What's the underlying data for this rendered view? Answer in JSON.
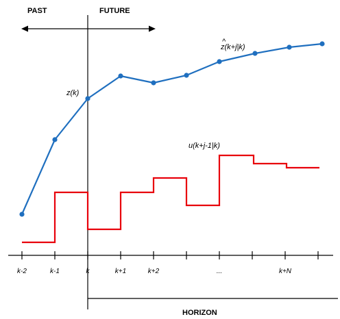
{
  "labels": {
    "past": "PAST",
    "future": "FUTURE",
    "horizon": "HORIZON",
    "output_current": "z(k)",
    "output_predicted": "z(k+j|k)",
    "output_predicted_hat": "^",
    "input_sequence": "u(k+j-1|k)"
  },
  "axis": {
    "ticks": [
      "k-2",
      "k-1",
      "k",
      "k+1",
      "k+2",
      "",
      "...",
      "",
      "k+N",
      ""
    ]
  },
  "colors": {
    "output": "#1f6fbf",
    "input": "#e8000b",
    "axis": "#000000"
  }
}
